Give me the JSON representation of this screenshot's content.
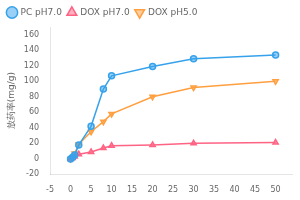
{
  "chart_data": {
    "type": "line",
    "ylabel": "放药率(mg/g)",
    "x": [
      0,
      0.5,
      1,
      2,
      5,
      8,
      10,
      20,
      30,
      50
    ],
    "series": [
      {
        "name": "PC pH7.0",
        "marker": "circle",
        "values": [
          0,
          2,
          5,
          18,
          42,
          90,
          107,
          119,
          129,
          134
        ]
      },
      {
        "name": "DOX pH7.0",
        "marker": "triangle-up",
        "values": [
          0,
          1,
          3,
          6,
          9,
          14,
          17,
          18,
          20,
          21
        ]
      },
      {
        "name": "DOX pH5.0",
        "marker": "triangle-down",
        "values": [
          0,
          2,
          7,
          19,
          35,
          48,
          58,
          80,
          92,
          100
        ]
      }
    ],
    "xlim": [
      -5,
      54
    ],
    "ylim": [
      -20,
      170
    ],
    "xticks": [
      -5,
      0,
      5,
      10,
      15,
      20,
      25,
      30,
      35,
      40,
      45,
      50
    ],
    "yticks": [
      -20,
      0,
      20,
      40,
      60,
      80,
      100,
      120,
      140,
      160
    ],
    "grid": false,
    "legend": "upper left"
  }
}
